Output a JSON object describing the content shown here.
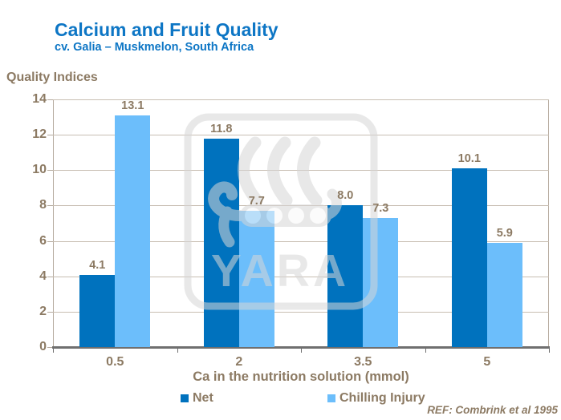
{
  "header": {
    "title": "Calcium and Fruit Quality",
    "subtitle": "cv. Galia – Muskmelon, South Africa"
  },
  "footer": {
    "ref": "REF: Combrink et al 1995"
  },
  "watermark_text": "YARA",
  "colors": {
    "title_blue": "#0d76c5",
    "text_brown": "#8c7a63",
    "gridline": "#c8beb2",
    "plot_border": "#b5aa9e",
    "axis_gray": "#6f6f6f",
    "watermark_gray": "#d7d7d7"
  },
  "chart_data": {
    "type": "bar",
    "title": "Calcium and Fruit Quality",
    "subtitle": "cv. Galia – Muskmelon, South Africa",
    "categories": [
      "0.5",
      "2",
      "3.5",
      "5"
    ],
    "series": [
      {
        "name": "Net",
        "color": "#0072be",
        "values": [
          4.1,
          11.8,
          8.0,
          10.1
        ]
      },
      {
        "name": "Chilling Injury",
        "color": "#6cbefb",
        "values": [
          13.1,
          7.7,
          7.3,
          5.9
        ]
      }
    ],
    "xlabel": "Ca in the nutrition solution (mmol)",
    "ylabel": "Quality Indices",
    "ylim": [
      0,
      14
    ],
    "ytick_step": 2,
    "grid": true,
    "data_labels": true,
    "data_label_decimals": 1,
    "legend_position": "bottom"
  }
}
